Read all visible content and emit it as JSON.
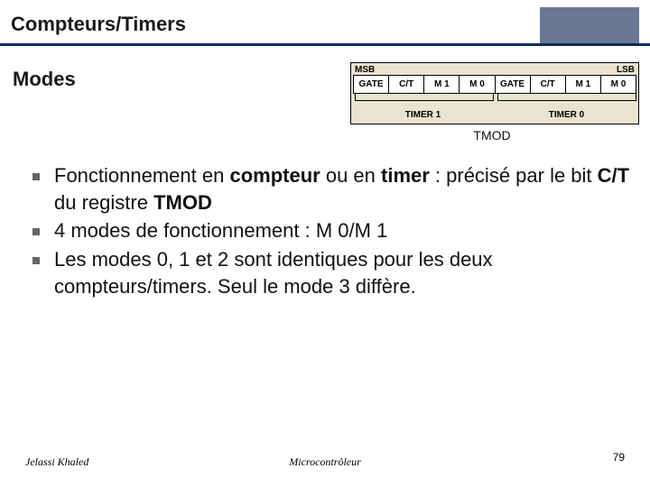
{
  "header": {
    "title": "Compteurs/Timers",
    "box_color": "#6b7895",
    "rule_color": "#0b2d5c"
  },
  "subheading": "Modes",
  "register": {
    "msb": "MSB",
    "lsb": "LSB",
    "cells": [
      "GATE",
      "C/T",
      "M 1",
      "M 0",
      "GATE",
      "C/T",
      "M 1",
      "M 0"
    ],
    "labels": [
      "TIMER 1",
      "TIMER 0"
    ],
    "bg_color": "#e8e4cf",
    "cell_bg": "#ffffff"
  },
  "tmod_label": "TMOD",
  "bullets": {
    "b1": {
      "pre": "Fonctionnement en ",
      "bold1": "compteur",
      "mid1": " ou en ",
      "bold2": "timer",
      "mid2": " : précisé par le bit ",
      "bold3": "C/T",
      "mid3": " du registre ",
      "bold4": "TMOD"
    },
    "b2": "4 modes de fonctionnement : M 0/M 1",
    "b3": "Les modes 0, 1 et 2 sont identiques pour les deux compteurs/timers. Seul le mode 3 diffère."
  },
  "footer": {
    "author": "Jelassi Khaled",
    "course": "Microcontrôleur",
    "page": "79"
  }
}
